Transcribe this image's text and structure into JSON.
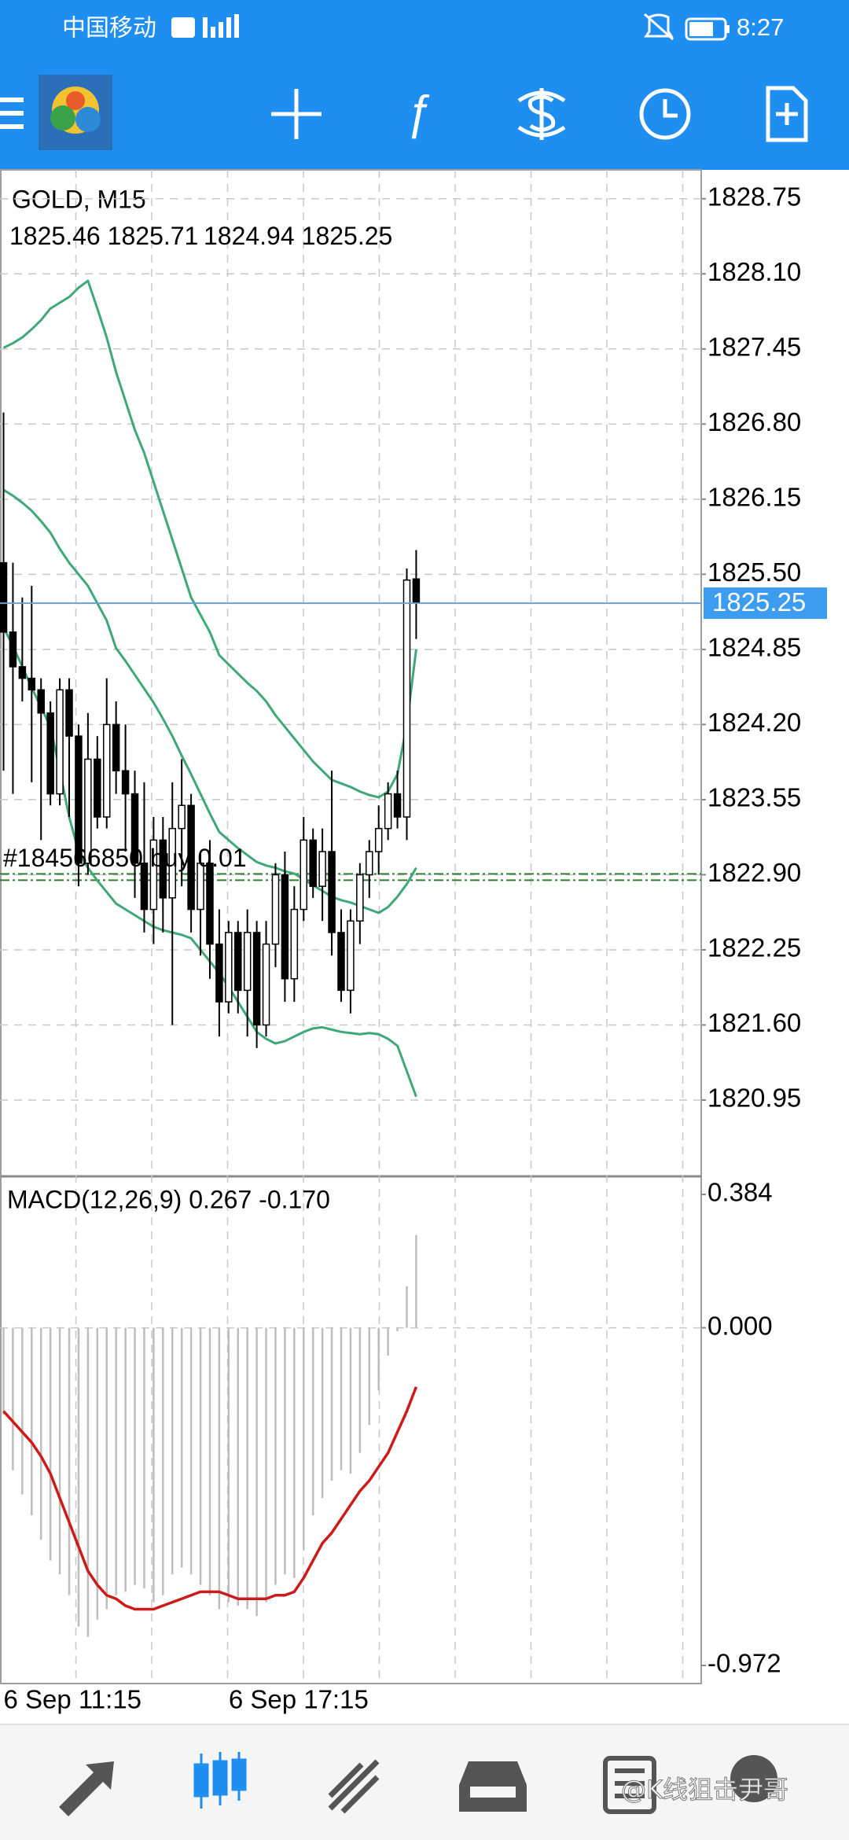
{
  "status_bar": {
    "carrier": "中国移动",
    "time": "8:27"
  },
  "watermark": "@K线狙击尹哥",
  "chart_data": {
    "type": "candlestick",
    "title": "GOLD, M15",
    "categories": [
      "6 Sep 11:15",
      null,
      null,
      null,
      null,
      null,
      null,
      null,
      null,
      null,
      null,
      null,
      null,
      null,
      null,
      null,
      null,
      null,
      null,
      null,
      null,
      null,
      null,
      null,
      "6 Sep 17:15",
      null,
      null,
      null,
      null,
      null,
      null,
      null,
      null,
      null,
      null,
      null,
      null,
      null,
      null,
      null,
      null,
      null,
      null,
      null,
      null
    ],
    "open": [
      1825.6,
      1825.0,
      1824.7,
      1824.6,
      1824.5,
      1824.3,
      1823.6,
      1824.5,
      1824.1,
      1823.0,
      1823.9,
      1823.4,
      1824.2,
      1823.8,
      1823.6,
      1823.0,
      1822.6,
      1823.2,
      1822.7,
      1823.3,
      1823.5,
      1822.6,
      1823.0,
      1822.3,
      1821.8,
      1822.4,
      1821.9,
      1822.4,
      1821.6,
      1822.3,
      1822.9,
      1822.0,
      1822.6,
      1823.2,
      1822.8,
      1823.1,
      1822.4,
      1821.9,
      1822.5,
      1822.9,
      1823.1,
      1823.3,
      1823.6,
      1823.4,
      1825.46
    ],
    "high": [
      1826.9,
      1825.6,
      1825.3,
      1825.4,
      1824.6,
      1824.4,
      1824.6,
      1824.6,
      1824.2,
      1824.3,
      1824.1,
      1824.6,
      1824.4,
      1824.2,
      1823.8,
      1823.7,
      1823.4,
      1823.4,
      1823.7,
      1823.9,
      1823.6,
      1823.1,
      1823.2,
      1822.6,
      1822.5,
      1822.5,
      1822.6,
      1822.5,
      1822.5,
      1823.0,
      1823.1,
      1822.8,
      1823.4,
      1823.3,
      1823.3,
      1823.8,
      1822.6,
      1822.6,
      1823.0,
      1823.2,
      1823.5,
      1823.7,
      1823.8,
      1825.55,
      1825.71
    ],
    "low": [
      1823.8,
      1823.6,
      1824.4,
      1823.7,
      1823.2,
      1823.5,
      1823.5,
      1823.4,
      1822.8,
      1822.9,
      1823.3,
      1823.3,
      1823.6,
      1823.1,
      1822.7,
      1822.4,
      1822.3,
      1822.4,
      1821.6,
      1822.8,
      1822.4,
      1822.2,
      1822.0,
      1821.5,
      1821.7,
      1821.7,
      1821.5,
      1821.4,
      1821.5,
      1822.1,
      1821.8,
      1821.8,
      1822.5,
      1822.7,
      1822.5,
      1822.2,
      1821.8,
      1821.7,
      1822.3,
      1822.7,
      1822.9,
      1823.2,
      1823.3,
      1823.2,
      1824.94
    ],
    "close": [
      1825.0,
      1824.7,
      1824.6,
      1824.5,
      1824.3,
      1823.6,
      1824.5,
      1824.1,
      1823.0,
      1823.9,
      1823.4,
      1824.2,
      1823.8,
      1823.6,
      1823.0,
      1822.6,
      1823.2,
      1822.7,
      1823.3,
      1823.5,
      1822.6,
      1823.0,
      1822.3,
      1821.8,
      1822.4,
      1821.9,
      1822.4,
      1821.6,
      1822.3,
      1822.9,
      1822.0,
      1822.6,
      1823.2,
      1822.8,
      1823.1,
      1822.4,
      1821.9,
      1822.5,
      1822.9,
      1823.1,
      1823.3,
      1823.6,
      1823.4,
      1825.45,
      1825.25
    ],
    "up_color": "#ffffff",
    "down_color": "#000000",
    "bollinger": {
      "color": "#3fa878",
      "upper": [
        1827.46,
        1827.5,
        1827.55,
        1827.62,
        1827.7,
        1827.8,
        1827.85,
        1827.9,
        1827.98,
        1828.04,
        1827.8,
        1827.55,
        1827.25,
        1827.0,
        1826.75,
        1826.55,
        1826.3,
        1826.05,
        1825.8,
        1825.55,
        1825.3,
        1825.15,
        1825.0,
        1824.8,
        1824.72,
        1824.64,
        1824.56,
        1824.49,
        1824.4,
        1824.28,
        1824.18,
        1824.08,
        1823.98,
        1823.88,
        1823.8,
        1823.72,
        1823.69,
        1823.66,
        1823.62,
        1823.59,
        1823.57,
        1823.62,
        1823.77,
        1824.2,
        1824.85
      ],
      "middle": [
        1826.23,
        1826.18,
        1826.12,
        1826.05,
        1825.96,
        1825.86,
        1825.72,
        1825.6,
        1825.5,
        1825.4,
        1825.25,
        1825.1,
        1824.86,
        1824.75,
        1824.63,
        1824.51,
        1824.39,
        1824.25,
        1824.1,
        1823.93,
        1823.77,
        1823.6,
        1823.43,
        1823.27,
        1823.2,
        1823.13,
        1823.07,
        1823.01,
        1822.98,
        1822.96,
        1822.93,
        1822.91,
        1822.86,
        1822.81,
        1822.76,
        1822.71,
        1822.68,
        1822.66,
        1822.63,
        1822.6,
        1822.57,
        1822.62,
        1822.71,
        1822.82,
        1822.96
      ],
      "lower": [
        1825.04,
        1824.88,
        1824.7,
        1824.52,
        1824.35,
        1824.18,
        1823.8,
        1823.4,
        1823.1,
        1822.96,
        1822.85,
        1822.75,
        1822.65,
        1822.6,
        1822.55,
        1822.5,
        1822.45,
        1822.42,
        1822.4,
        1822.38,
        1822.35,
        1822.25,
        1822.15,
        1822.05,
        1821.93,
        1821.8,
        1821.67,
        1821.54,
        1821.48,
        1821.44,
        1821.46,
        1821.5,
        1821.54,
        1821.57,
        1821.58,
        1821.56,
        1821.54,
        1821.53,
        1821.52,
        1821.53,
        1821.52,
        1821.48,
        1821.42,
        1821.2,
        1820.98
      ]
    },
    "ylim": [
      1820.29,
      1829.0
    ],
    "yticks": [
      1828.75,
      {
        "value": 1828.1,
        "label": "1828.10"
      },
      1827.45,
      {
        "value": 1826.8,
        "label": "1826.80"
      },
      1826.15,
      {
        "value": 1825.5,
        "label": "1825.50"
      },
      1824.85,
      {
        "value": 1824.2,
        "label": "1824.20"
      },
      1823.55,
      {
        "value": 1822.9,
        "label": "1822.90"
      },
      1822.25,
      {
        "value": 1821.6,
        "label": "1821.60"
      },
      1820.95
    ],
    "grid": true,
    "current_price": 1825.25,
    "current_price_color": "#3b9cf0",
    "order": {
      "label": "#184566850 buy 0.01",
      "price": 1822.88,
      "color": "#2e7d32"
    },
    "macd": {
      "title": "MACD(12,26,9) 0.267 -0.170",
      "values": [
        -0.25,
        -0.41,
        -0.48,
        -0.54,
        -0.61,
        -0.67,
        -0.71,
        -0.77,
        -0.86,
        -0.89,
        -0.84,
        -0.81,
        -0.77,
        -0.76,
        -0.74,
        -0.75,
        -0.79,
        -0.77,
        -0.71,
        -0.69,
        -0.71,
        -0.74,
        -0.77,
        -0.81,
        -0.79,
        -0.8,
        -0.81,
        -0.83,
        -0.79,
        -0.74,
        -0.71,
        -0.72,
        -0.64,
        -0.54,
        -0.49,
        -0.44,
        -0.41,
        -0.42,
        -0.36,
        -0.28,
        -0.18,
        -0.08,
        -0.01,
        0.12,
        0.267
      ],
      "color": "#bdbdbd",
      "signal": [
        -0.24,
        -0.27,
        -0.3,
        -0.33,
        -0.37,
        -0.42,
        -0.49,
        -0.56,
        -0.63,
        -0.7,
        -0.74,
        -0.77,
        -0.78,
        -0.8,
        -0.81,
        -0.81,
        -0.81,
        -0.8,
        -0.79,
        -0.78,
        -0.77,
        -0.76,
        -0.76,
        -0.76,
        -0.77,
        -0.78,
        -0.78,
        -0.78,
        -0.78,
        -0.77,
        -0.77,
        -0.76,
        -0.72,
        -0.67,
        -0.62,
        -0.59,
        -0.55,
        -0.51,
        -0.47,
        -0.44,
        -0.4,
        -0.36,
        -0.3,
        -0.24,
        -0.17
      ],
      "signal_color": "#cc1b1b",
      "ylim": [
        -1.024,
        0.436
      ],
      "yticks": [
        0.384,
        {
          "value": 0,
          "label": "0.000"
        },
        -0.972
      ]
    }
  }
}
